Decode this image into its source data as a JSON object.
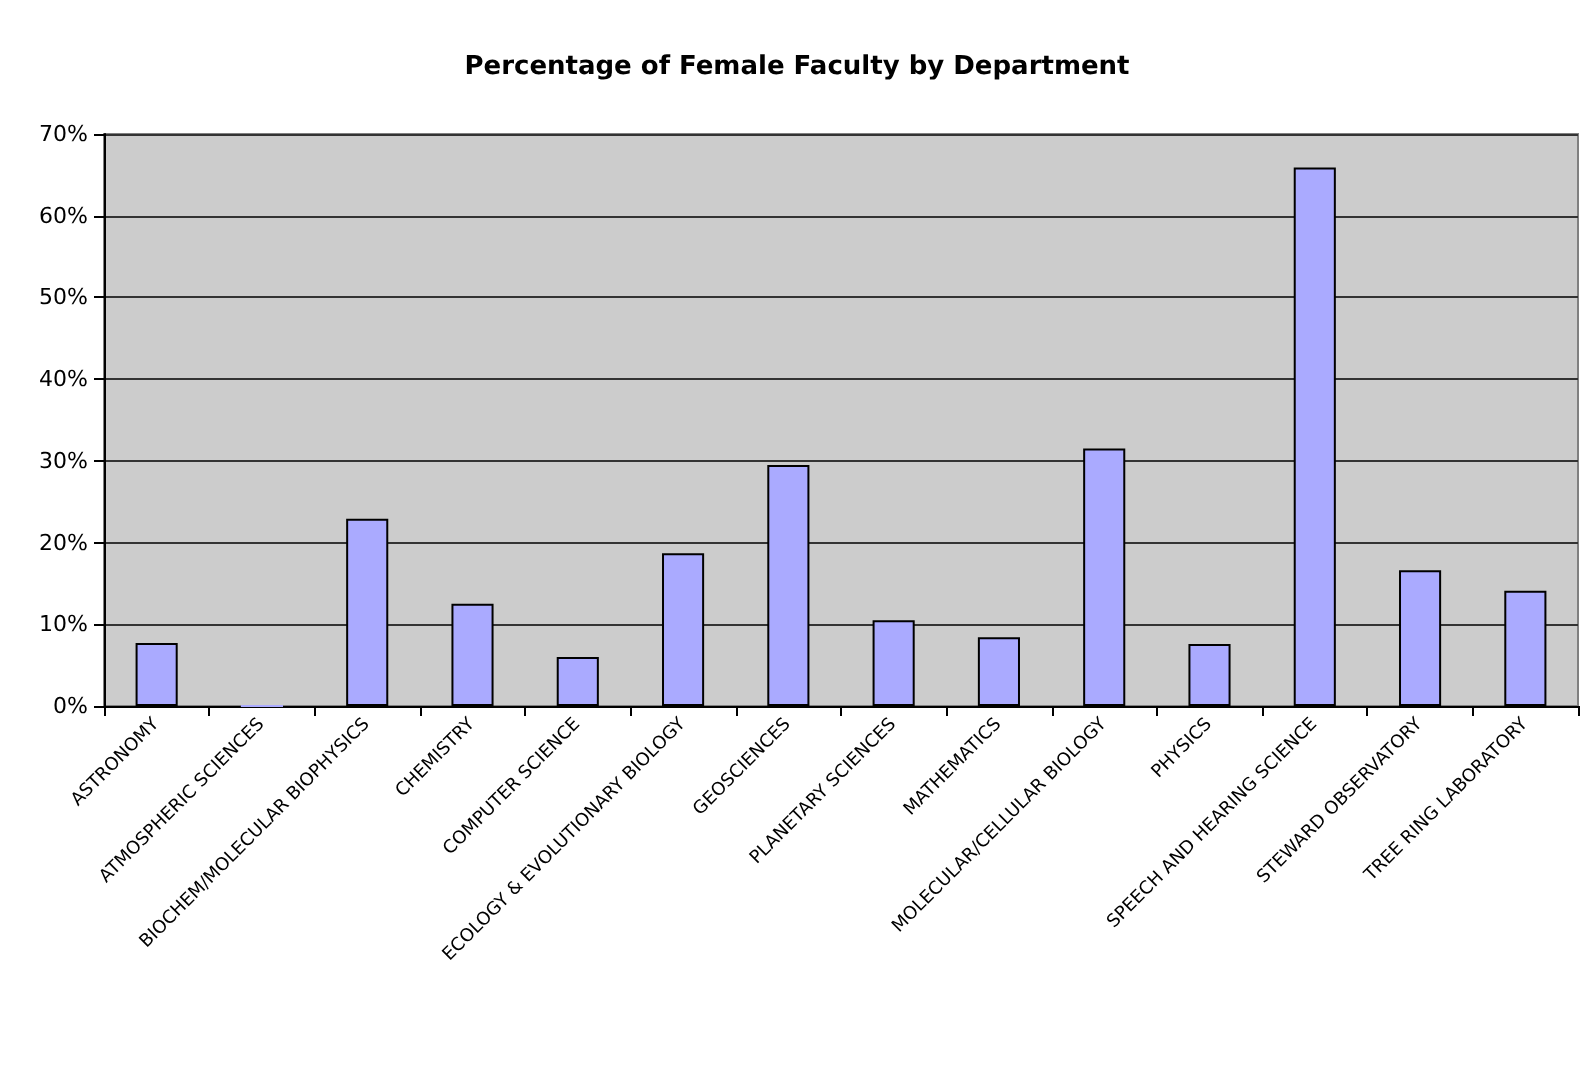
{
  "chart_data": {
    "type": "bar",
    "title": "Percentage of Female Faculty by Department",
    "categories": [
      "ASTRONOMY",
      "ATMOSPHERIC SCIENCES",
      "BIOCHEM/MOLECULAR BIOPHYSICS",
      "CHEMISTRY",
      "COMPUTER SCIENCE",
      "ECOLOGY & EVOLUTIONARY BIOLOGY",
      "GEOSCIENCES",
      "PLANETARY SCIENCES",
      "MATHEMATICS",
      "MOLECULAR/CELLULAR BIOLOGY",
      "PHYSICS",
      "SPEECH AND HEARING SCIENCE",
      "STEWARD OBSERVATORY",
      "TREE RING LABORATORY"
    ],
    "values": [
      7.7,
      0,
      22.9,
      12.5,
      6.0,
      18.7,
      29.5,
      10.5,
      8.4,
      31.5,
      7.6,
      65.9,
      16.6,
      14.1
    ],
    "color": "#aaaaff",
    "ylim": [
      0,
      70
    ],
    "yticks": [
      {
        "value": 0,
        "label": "0%"
      },
      {
        "value": 10,
        "label": "10%"
      },
      {
        "value": 20,
        "label": "20%"
      },
      {
        "value": 30,
        "label": "30%"
      },
      {
        "value": 40,
        "label": "40%"
      },
      {
        "value": 50,
        "label": "50%"
      },
      {
        "value": 60,
        "label": "60%"
      },
      {
        "value": 70,
        "label": "70%"
      }
    ],
    "grid": "y"
  }
}
